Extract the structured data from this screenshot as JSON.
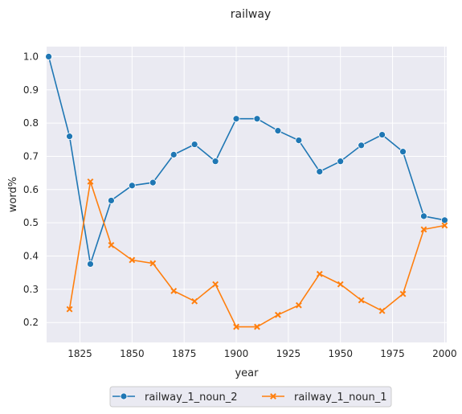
{
  "chart_data": {
    "type": "line",
    "title": "railway",
    "xlabel": "year",
    "ylabel": "word%",
    "xlim": [
      1809,
      2001
    ],
    "ylim": [
      0.14,
      1.03
    ],
    "xticks": [
      1825,
      1850,
      1875,
      1900,
      1925,
      1950,
      1975,
      2000
    ],
    "yticks": [
      0.2,
      0.3,
      0.4,
      0.5,
      0.6,
      0.7,
      0.8,
      0.9,
      1.0
    ],
    "grid": true,
    "legend_position": "bottom-center",
    "series": [
      {
        "name": "railway_1_noun_2",
        "color": "#1f77b4",
        "marker": "circle",
        "x": [
          1810,
          1820,
          1830,
          1840,
          1850,
          1860,
          1870,
          1880,
          1890,
          1900,
          1910,
          1920,
          1930,
          1940,
          1950,
          1960,
          1970,
          1980,
          1990,
          2000
        ],
        "y": [
          1.0,
          0.76,
          0.376,
          0.567,
          0.612,
          0.621,
          0.705,
          0.736,
          0.685,
          0.813,
          0.813,
          0.777,
          0.748,
          0.654,
          0.685,
          0.733,
          0.765,
          0.714,
          0.52,
          0.508
        ]
      },
      {
        "name": "railway_1_noun_1",
        "color": "#ff7f0e",
        "marker": "x",
        "x": [
          1820,
          1830,
          1840,
          1850,
          1860,
          1870,
          1880,
          1890,
          1900,
          1910,
          1920,
          1930,
          1940,
          1950,
          1960,
          1970,
          1980,
          1990,
          2000
        ],
        "y": [
          0.24,
          0.624,
          0.433,
          0.388,
          0.378,
          0.295,
          0.264,
          0.315,
          0.187,
          0.187,
          0.223,
          0.252,
          0.346,
          0.315,
          0.267,
          0.235,
          0.286,
          0.48,
          0.492
        ]
      }
    ]
  }
}
